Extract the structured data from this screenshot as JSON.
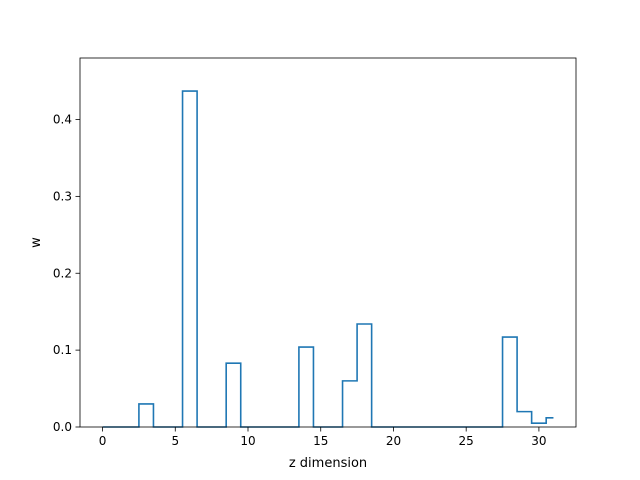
{
  "chart_data": {
    "type": "line",
    "drawstyle": "steps-mid",
    "xlabel": "z dimension",
    "ylabel": "w",
    "xlim": [
      -1.55,
      32.55
    ],
    "ylim": [
      0,
      0.48
    ],
    "xticks": [
      0,
      5,
      10,
      15,
      20,
      25,
      30
    ],
    "xtick_labels": [
      "0",
      "5",
      "10",
      "15",
      "20",
      "25",
      "30"
    ],
    "yticks": [
      0.0,
      0.1,
      0.2,
      0.3,
      0.4
    ],
    "ytick_labels": [
      "0.0",
      "0.1",
      "0.2",
      "0.3",
      "0.4"
    ],
    "grid": false,
    "series": [
      {
        "color": "#1f77b4",
        "x": [
          0,
          1,
          2,
          3,
          4,
          5,
          6,
          7,
          8,
          9,
          10,
          11,
          12,
          13,
          14,
          15,
          16,
          17,
          18,
          19,
          20,
          21,
          22,
          23,
          24,
          25,
          26,
          27,
          28,
          29,
          30,
          31
        ],
        "y": [
          0,
          0,
          0,
          0.03,
          0,
          0,
          0.437,
          0,
          0,
          0.083,
          0,
          0,
          0,
          0,
          0.104,
          0,
          0,
          0.06,
          0.134,
          0,
          0,
          0,
          0,
          0,
          0,
          0,
          0,
          0,
          0.117,
          0.02,
          0.005,
          0.012
        ]
      }
    ]
  }
}
